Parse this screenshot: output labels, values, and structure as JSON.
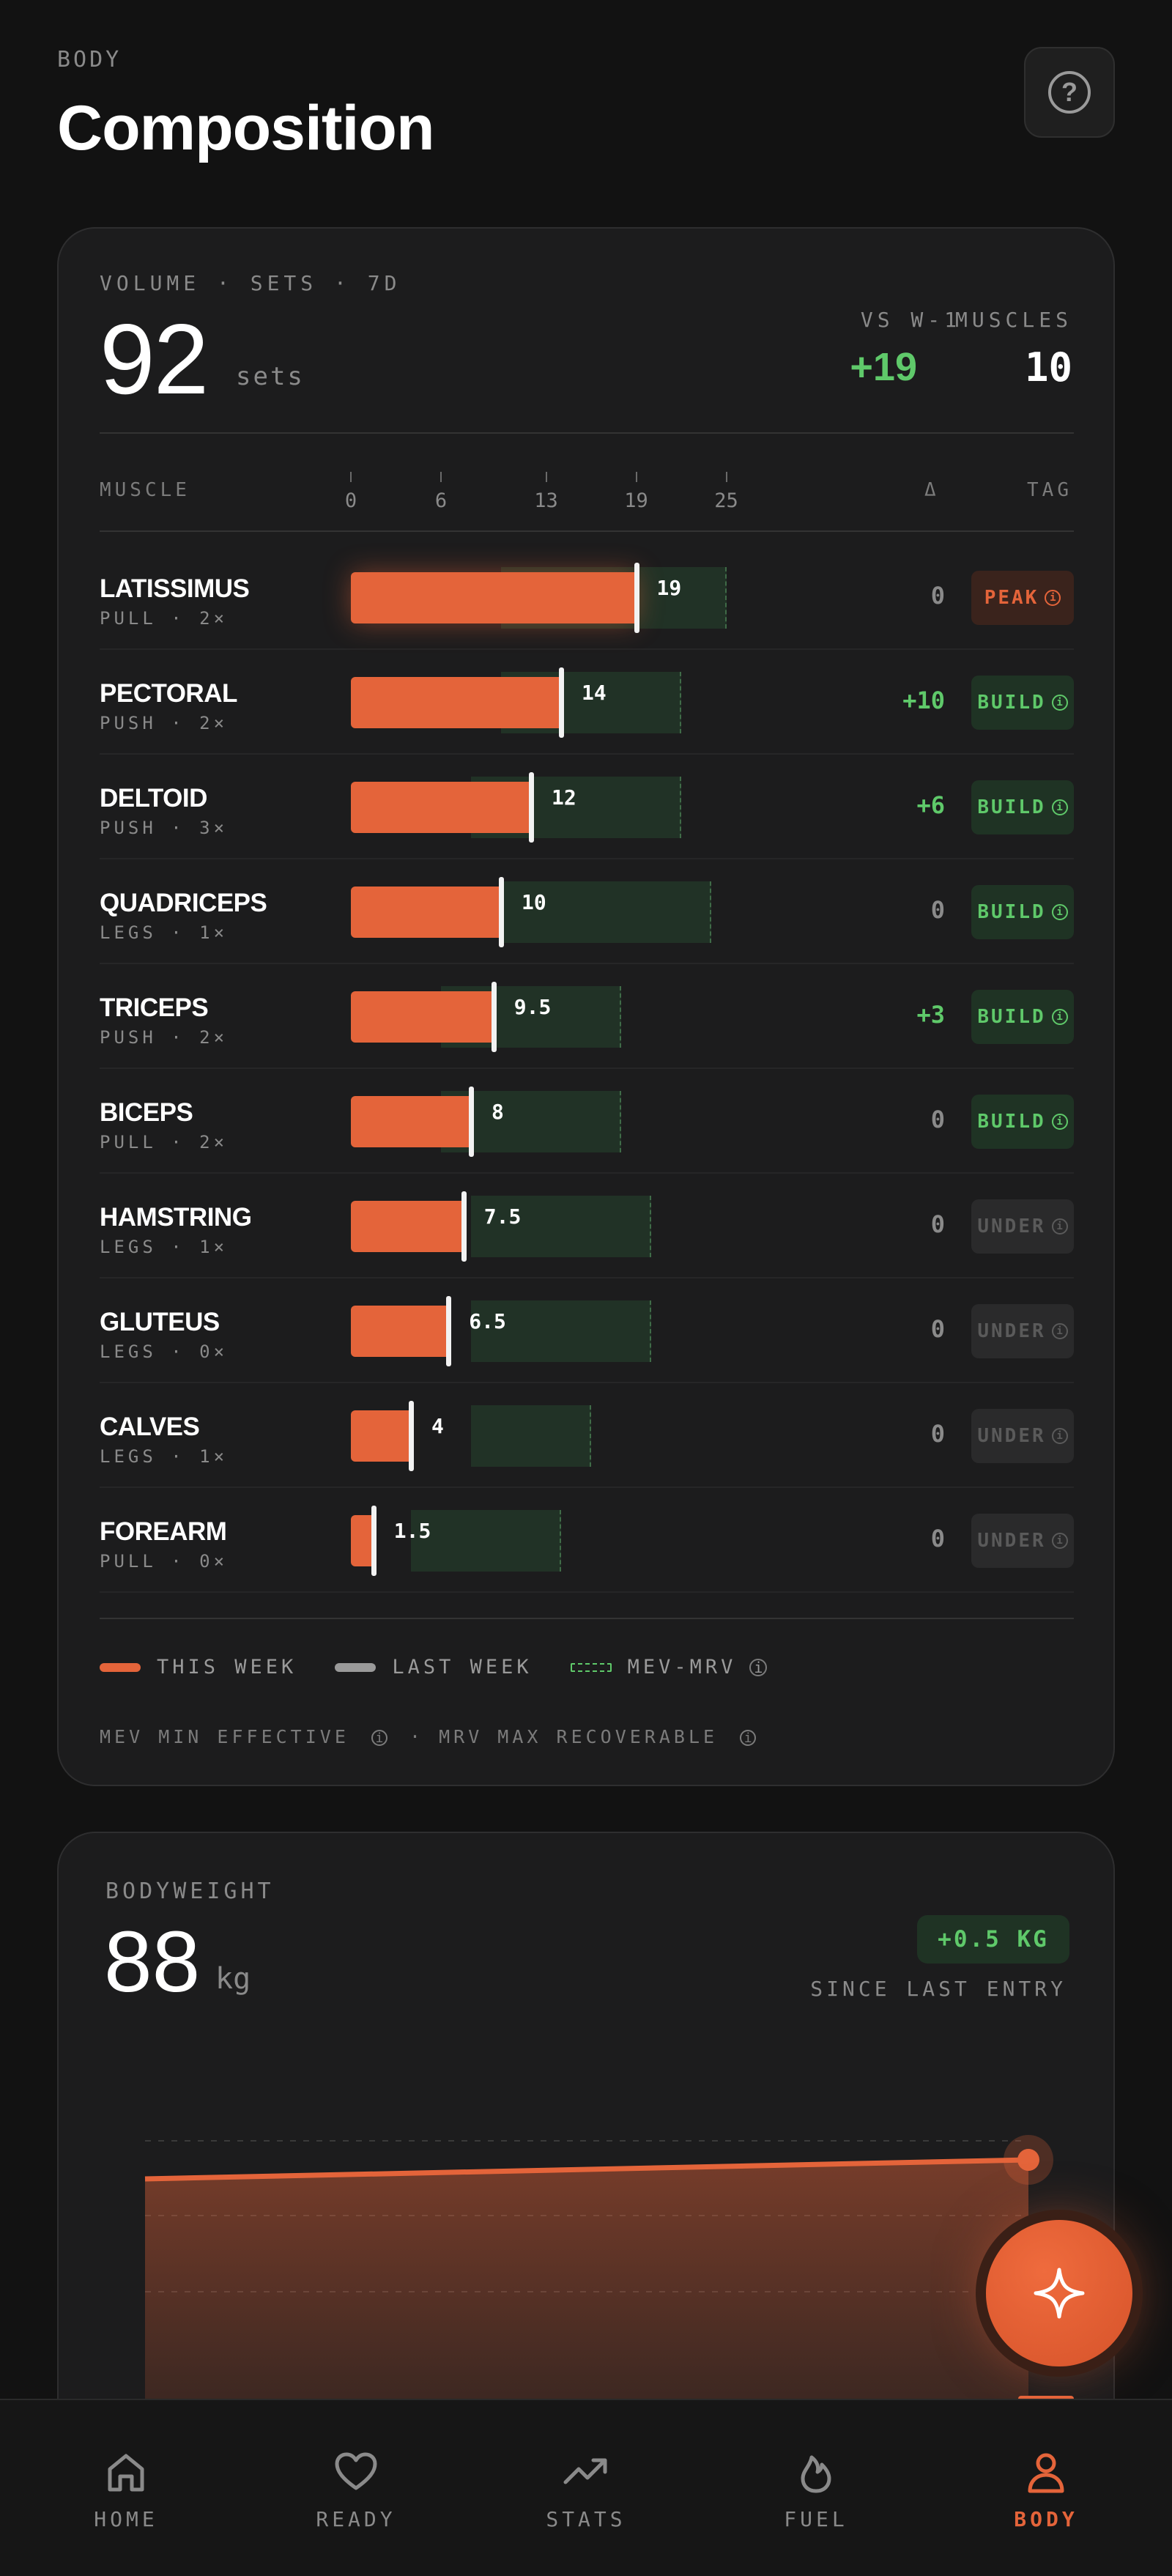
{
  "header": {
    "kicker": "BODY",
    "title": "Composition"
  },
  "volume": {
    "kicker": "VOLUME · SETS · 7D",
    "total": "92",
    "unit": "sets",
    "vs_label": "VS W-1",
    "vs_value": "+19",
    "muscles_label": "MUSCLES",
    "muscles_value": "10",
    "col_muscle": "MUSCLE",
    "col_delta": "Δ",
    "col_tag": "TAG",
    "axis_max": 30,
    "ticks": [
      "0",
      "6",
      "13",
      "19",
      "25"
    ],
    "rows": [
      {
        "name": "LATISSIMUS",
        "sub": "PULL · 2×",
        "value": 19,
        "label": "19",
        "mev": 10,
        "mrv": 25,
        "delta": "0",
        "tag": "PEAK"
      },
      {
        "name": "PECTORAL",
        "sub": "PUSH · 2×",
        "value": 14,
        "label": "14",
        "mev": 10,
        "mrv": 22,
        "delta": "+10",
        "tag": "BUILD"
      },
      {
        "name": "DELTOID",
        "sub": "PUSH · 3×",
        "value": 12,
        "label": "12",
        "mev": 8,
        "mrv": 22,
        "delta": "+6",
        "tag": "BUILD"
      },
      {
        "name": "QUADRICEPS",
        "sub": "LEGS · 1×",
        "value": 10,
        "label": "10",
        "mev": 10,
        "mrv": 24,
        "delta": "0",
        "tag": "BUILD"
      },
      {
        "name": "TRICEPS",
        "sub": "PUSH · 2×",
        "value": 9.5,
        "label": "9.5",
        "mev": 6,
        "mrv": 18,
        "delta": "+3",
        "tag": "BUILD"
      },
      {
        "name": "BICEPS",
        "sub": "PULL · 2×",
        "value": 8,
        "label": "8",
        "mev": 6,
        "mrv": 18,
        "delta": "0",
        "tag": "BUILD"
      },
      {
        "name": "HAMSTRING",
        "sub": "LEGS · 1×",
        "value": 7.5,
        "label": "7.5",
        "mev": 8,
        "mrv": 20,
        "delta": "0",
        "tag": "UNDER"
      },
      {
        "name": "GLUTEUS",
        "sub": "LEGS · 0×",
        "value": 6.5,
        "label": "6.5",
        "mev": 8,
        "mrv": 20,
        "delta": "0",
        "tag": "UNDER"
      },
      {
        "name": "CALVES",
        "sub": "LEGS · 1×",
        "value": 4,
        "label": "4",
        "mev": 8,
        "mrv": 16,
        "delta": "0",
        "tag": "UNDER"
      },
      {
        "name": "FOREARM",
        "sub": "PULL · 0×",
        "value": 1.5,
        "label": "1.5",
        "mev": 4,
        "mrv": 14,
        "delta": "0",
        "tag": "UNDER"
      }
    ],
    "legend": {
      "this_week": "THIS WEEK",
      "last_week": "LAST WEEK",
      "mev_mrv": "MEV-MRV"
    },
    "note_part1": "MEV MIN EFFECTIVE",
    "note_part2": "· MRV MAX RECOVERABLE"
  },
  "bodyweight": {
    "kicker": "BODYWEIGHT",
    "value": "88",
    "unit": "kg",
    "change": "+0.5 KG",
    "since": "SINCE LAST ENTRY",
    "points": [
      87.5,
      88
    ]
  },
  "nav": {
    "items": [
      {
        "label": "HOME",
        "icon": "home-icon"
      },
      {
        "label": "READY",
        "icon": "heart-icon"
      },
      {
        "label": "STATS",
        "icon": "trend-icon"
      },
      {
        "label": "FUEL",
        "icon": "flame-icon"
      },
      {
        "label": "BODY",
        "icon": "person-icon"
      }
    ],
    "active": 4
  },
  "colors": {
    "accent": "#e4643a",
    "positive": "#5fc96a",
    "range_fill": "#213226",
    "bg": "#121212",
    "card": "#1c1c1d"
  }
}
